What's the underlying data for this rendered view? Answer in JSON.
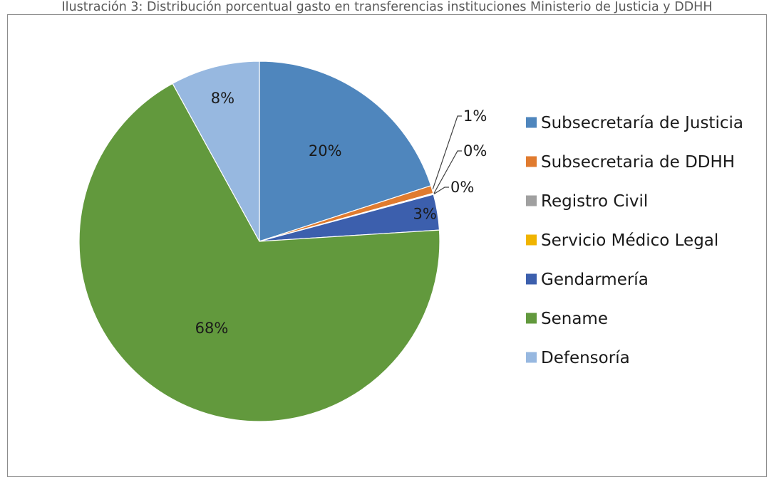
{
  "caption": "Ilustración 3: Distribución porcentual gasto en transferencias instituciones Ministerio de Justicia y DDHH",
  "chart_data": {
    "type": "pie",
    "title": "",
    "legend_position": "right",
    "slices": [
      {
        "name": "Subsecretaría de Justicia",
        "value": 20,
        "label": "20%",
        "color": "#4f86bd"
      },
      {
        "name": "Subsecretaria de DDHH",
        "value": 0.7,
        "label": "1%",
        "color": "#e07b2f"
      },
      {
        "name": "Registro Civil",
        "value": 0.05,
        "label": "0%",
        "color": "#a0a0a0"
      },
      {
        "name": "Servicio Médico Legal",
        "value": 0.05,
        "label": "0%",
        "color": "#f0b400"
      },
      {
        "name": "Gendarmería",
        "value": 3.2,
        "label": "3%",
        "color": "#3c5fad"
      },
      {
        "name": "Sename",
        "value": 68,
        "label": "68%",
        "color": "#62993d"
      },
      {
        "name": "Defensoría",
        "value": 8,
        "label": "8%",
        "color": "#97b8e0"
      }
    ]
  }
}
